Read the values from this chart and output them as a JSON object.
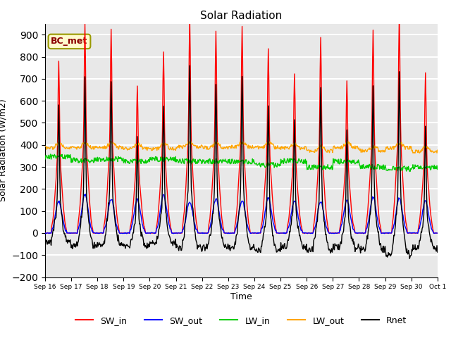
{
  "title": "Solar Radiation",
  "xlabel": "Time",
  "ylabel": "Solar Radiation (W/m2)",
  "ylim": [
    -200,
    950
  ],
  "yticks": [
    -200,
    -100,
    0,
    100,
    200,
    300,
    400,
    500,
    600,
    700,
    800,
    900
  ],
  "n_days": 15,
  "annotation_text": "BC_met",
  "colors": {
    "SW_in": "#FF0000",
    "SW_out": "#0000FF",
    "LW_in": "#00CC00",
    "LW_out": "#FFA500",
    "Rnet": "#000000"
  },
  "background_color": "#E8E8E8",
  "grid_color": "#FFFFFF",
  "line_width": 1.0
}
